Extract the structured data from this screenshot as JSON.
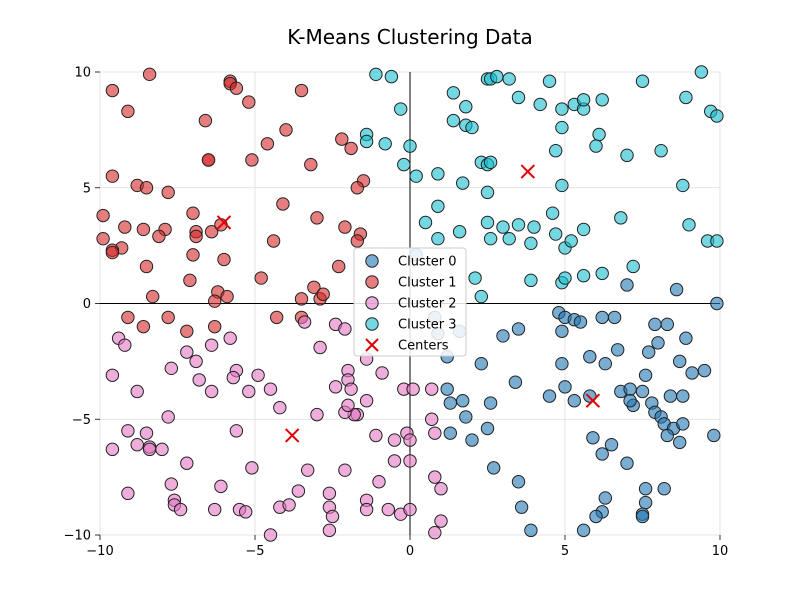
{
  "chart_data": {
    "type": "scatter",
    "title": "K-Means Clustering Data",
    "xlabel": "",
    "ylabel": "",
    "xlim": [
      -10,
      10
    ],
    "ylim": [
      -10,
      10
    ],
    "x_ticks": [
      -10,
      -5,
      0,
      5,
      10
    ],
    "y_ticks": [
      -10,
      -5,
      0,
      5,
      10
    ],
    "x_tick_labels": [
      "−10",
      "−5",
      "0",
      "5",
      "10"
    ],
    "y_tick_labels": [
      "−10",
      "−5",
      "0",
      "5",
      "10"
    ],
    "grid": true,
    "axes_through_origin": true,
    "legend_position": "center",
    "series": [
      {
        "name": "Cluster 0",
        "color": "#1f77b4",
        "points": [
          [
            0.2,
            2.1
          ],
          [
            0.8,
            -0.6
          ],
          [
            0.9,
            -1.3
          ],
          [
            1.2,
            -2.3
          ],
          [
            1.6,
            -1.2
          ],
          [
            3.0,
            -1.4
          ],
          [
            3.5,
            -1.1
          ],
          [
            4.8,
            -0.4
          ],
          [
            5.0,
            -0.6
          ],
          [
            5.3,
            -0.7
          ],
          [
            5.5,
            -0.8
          ],
          [
            6.2,
            -0.6
          ],
          [
            6.6,
            -0.6
          ],
          [
            4.9,
            -1.2
          ],
          [
            7.0,
            0.8
          ],
          [
            8.6,
            0.6
          ],
          [
            9.9,
            0.0
          ],
          [
            7.9,
            -0.9
          ],
          [
            8.3,
            -0.9
          ],
          [
            8.9,
            -1.5
          ],
          [
            8.0,
            -1.7
          ],
          [
            6.7,
            -2.0
          ],
          [
            5.8,
            -2.3
          ],
          [
            6.3,
            -2.6
          ],
          [
            7.7,
            -2.1
          ],
          [
            8.7,
            -2.5
          ],
          [
            9.1,
            -3.0
          ],
          [
            9.5,
            -2.9
          ],
          [
            7.6,
            -3.1
          ],
          [
            4.9,
            -2.6
          ],
          [
            2.3,
            -2.6
          ],
          [
            3.4,
            -3.4
          ],
          [
            5.0,
            -3.6
          ],
          [
            4.5,
            -4.0
          ],
          [
            5.3,
            -4.2
          ],
          [
            5.8,
            -4.0
          ],
          [
            6.8,
            -3.8
          ],
          [
            7.1,
            -3.7
          ],
          [
            7.5,
            -3.8
          ],
          [
            8.4,
            -4.0
          ],
          [
            8.8,
            -4.0
          ],
          [
            7.2,
            -4.4
          ],
          [
            7.1,
            -4.2
          ],
          [
            7.8,
            -4.3
          ],
          [
            7.9,
            -4.7
          ],
          [
            8.1,
            -4.9
          ],
          [
            8.2,
            -5.2
          ],
          [
            8.5,
            -5.4
          ],
          [
            8.3,
            -5.7
          ],
          [
            8.7,
            -6.0
          ],
          [
            8.8,
            -5.2
          ],
          [
            9.8,
            -5.7
          ],
          [
            1.2,
            -3.7
          ],
          [
            1.7,
            -4.2
          ],
          [
            1.3,
            -4.3
          ],
          [
            1.8,
            -4.9
          ],
          [
            1.3,
            -5.6
          ],
          [
            2.0,
            -5.9
          ],
          [
            2.5,
            -5.4
          ],
          [
            2.6,
            -4.3
          ],
          [
            2.7,
            -7.1
          ],
          [
            3.5,
            -7.7
          ],
          [
            3.6,
            -8.8
          ],
          [
            3.9,
            -9.8
          ],
          [
            5.9,
            -5.8
          ],
          [
            6.5,
            -6.1
          ],
          [
            6.2,
            -6.5
          ],
          [
            7.0,
            -6.9
          ],
          [
            7.6,
            -8.0
          ],
          [
            8.2,
            -8.0
          ],
          [
            7.6,
            -8.6
          ],
          [
            7.5,
            -9.1
          ],
          [
            7.5,
            -9.2
          ],
          [
            6.3,
            -8.4
          ],
          [
            6.2,
            -9.0
          ],
          [
            6.0,
            -9.2
          ],
          [
            5.6,
            -9.8
          ]
        ]
      },
      {
        "name": "Cluster 1",
        "color": "#d62728",
        "points": [
          [
            -8.4,
            9.9
          ],
          [
            -5.8,
            9.6
          ],
          [
            -5.8,
            9.5
          ],
          [
            -5.6,
            9.3
          ],
          [
            -3.5,
            9.2
          ],
          [
            -9.6,
            9.2
          ],
          [
            -9.1,
            8.3
          ],
          [
            -5.2,
            8.7
          ],
          [
            -6.6,
            7.9
          ],
          [
            -4.0,
            7.5
          ],
          [
            -4.6,
            6.9
          ],
          [
            -2.2,
            7.1
          ],
          [
            -1.9,
            6.7
          ],
          [
            -6.5,
            6.2
          ],
          [
            -6.5,
            6.2
          ],
          [
            -5.1,
            6.2
          ],
          [
            -3.2,
            6.0
          ],
          [
            -9.6,
            5.5
          ],
          [
            -1.5,
            5.3
          ],
          [
            -1.7,
            5.0
          ],
          [
            -8.8,
            5.1
          ],
          [
            -8.5,
            5.0
          ],
          [
            -7.8,
            4.8
          ],
          [
            -4.1,
            4.3
          ],
          [
            -9.9,
            3.8
          ],
          [
            -7.0,
            3.9
          ],
          [
            -3.0,
            3.7
          ],
          [
            -9.2,
            3.3
          ],
          [
            -8.6,
            3.2
          ],
          [
            -7.9,
            3.2
          ],
          [
            -6.9,
            3.1
          ],
          [
            -6.4,
            3.1
          ],
          [
            -6.1,
            3.4
          ],
          [
            -2.1,
            3.3
          ],
          [
            -1.6,
            3.0
          ],
          [
            -6.9,
            2.9
          ],
          [
            -8.1,
            2.9
          ],
          [
            -9.9,
            2.8
          ],
          [
            -4.4,
            2.7
          ],
          [
            -1.7,
            2.7
          ],
          [
            -9.3,
            2.4
          ],
          [
            -9.6,
            2.3
          ],
          [
            -9.6,
            2.2
          ],
          [
            -6.0,
            1.9
          ],
          [
            -7.0,
            2.1
          ],
          [
            -8.5,
            1.6
          ],
          [
            -2.3,
            1.6
          ],
          [
            -4.8,
            1.1
          ],
          [
            -7.1,
            1.0
          ],
          [
            -3.1,
            0.7
          ],
          [
            -6.2,
            0.5
          ],
          [
            -5.9,
            0.3
          ],
          [
            -6.3,
            0.1
          ],
          [
            -8.3,
            0.3
          ],
          [
            -3.5,
            0.2
          ],
          [
            -2.9,
            0.2
          ],
          [
            -2.8,
            0.4
          ],
          [
            -9.1,
            -0.6
          ],
          [
            -7.8,
            -0.6
          ],
          [
            -4.3,
            -0.6
          ],
          [
            -3.5,
            -0.6
          ],
          [
            -8.6,
            -1.0
          ],
          [
            -7.2,
            -1.2
          ],
          [
            -6.3,
            -1.0
          ]
        ]
      },
      {
        "name": "Cluster 2",
        "color": "#e377c2",
        "points": [
          [
            -3.4,
            -0.8
          ],
          [
            -2.4,
            -0.9
          ],
          [
            -2.1,
            -1.1
          ],
          [
            -5.8,
            -1.5
          ],
          [
            -6.4,
            -1.8
          ],
          [
            -9.4,
            -1.5
          ],
          [
            -9.2,
            -1.8
          ],
          [
            -7.2,
            -2.1
          ],
          [
            -2.9,
            -1.9
          ],
          [
            -6.9,
            -2.5
          ],
          [
            -2.0,
            -2.9
          ],
          [
            -7.7,
            -2.8
          ],
          [
            -5.6,
            -2.9
          ],
          [
            -1.4,
            -2.4
          ],
          [
            -9.6,
            -3.1
          ],
          [
            -5.7,
            -3.2
          ],
          [
            -4.9,
            -3.1
          ],
          [
            -6.8,
            -3.3
          ],
          [
            -2.0,
            -3.3
          ],
          [
            -1.9,
            -3.7
          ],
          [
            -0.9,
            -3.0
          ],
          [
            -8.8,
            -3.8
          ],
          [
            -6.4,
            -3.8
          ],
          [
            -5.2,
            -3.8
          ],
          [
            -4.5,
            -3.7
          ],
          [
            -2.4,
            -3.6
          ],
          [
            -1.7,
            -4.8
          ],
          [
            -1.8,
            -4.8
          ],
          [
            -2.1,
            -4.7
          ],
          [
            -2.0,
            -4.4
          ],
          [
            -1.4,
            -4.2
          ],
          [
            -4.2,
            -4.5
          ],
          [
            -3.0,
            -4.8
          ],
          [
            -7.8,
            -4.9
          ],
          [
            -0.2,
            -3.7
          ],
          [
            0.1,
            -3.7
          ],
          [
            0.7,
            -3.7
          ],
          [
            0.7,
            -5.0
          ],
          [
            -0.1,
            -5.6
          ],
          [
            0.8,
            -5.6
          ],
          [
            -1.1,
            -5.7
          ],
          [
            -0.5,
            -5.9
          ],
          [
            0.0,
            -5.9
          ],
          [
            -8.5,
            -5.6
          ],
          [
            -9.1,
            -5.5
          ],
          [
            -5.6,
            -5.5
          ],
          [
            -8.8,
            -6.1
          ],
          [
            -8.4,
            -6.2
          ],
          [
            -8.4,
            -6.3
          ],
          [
            -8.0,
            -6.3
          ],
          [
            -9.6,
            -6.3
          ],
          [
            -7.2,
            -6.9
          ],
          [
            -5.1,
            -7.1
          ],
          [
            -3.3,
            -7.2
          ],
          [
            -2.1,
            -7.2
          ],
          [
            -1.0,
            -7.7
          ],
          [
            -0.5,
            -6.8
          ],
          [
            0.0,
            -6.8
          ],
          [
            0.8,
            -7.5
          ],
          [
            1.0,
            -8.0
          ],
          [
            -7.7,
            -7.8
          ],
          [
            -9.1,
            -8.2
          ],
          [
            -7.6,
            -8.5
          ],
          [
            -7.6,
            -8.7
          ],
          [
            -7.4,
            -8.9
          ],
          [
            -6.1,
            -7.9
          ],
          [
            -6.3,
            -8.9
          ],
          [
            -5.5,
            -8.9
          ],
          [
            -5.3,
            -9.0
          ],
          [
            -4.2,
            -8.8
          ],
          [
            -3.9,
            -8.7
          ],
          [
            -3.6,
            -8.1
          ],
          [
            -2.6,
            -8.2
          ],
          [
            -2.6,
            -8.8
          ],
          [
            -2.5,
            -9.2
          ],
          [
            -1.4,
            -8.5
          ],
          [
            -1.4,
            -8.9
          ],
          [
            -0.7,
            -8.9
          ],
          [
            -0.3,
            -9.1
          ],
          [
            0.0,
            -8.9
          ],
          [
            1.0,
            -9.4
          ],
          [
            0.8,
            -9.9
          ],
          [
            -2.6,
            -9.8
          ],
          [
            -4.5,
            -10.0
          ]
        ]
      },
      {
        "name": "Cluster 3",
        "color": "#17becf",
        "points": [
          [
            -1.1,
            9.9
          ],
          [
            -0.6,
            9.8
          ],
          [
            2.5,
            9.7
          ],
          [
            2.6,
            9.7
          ],
          [
            2.8,
            9.8
          ],
          [
            3.2,
            9.7
          ],
          [
            4.5,
            9.6
          ],
          [
            7.5,
            9.6
          ],
          [
            9.4,
            10.0
          ],
          [
            1.4,
            9.1
          ],
          [
            3.5,
            8.9
          ],
          [
            4.2,
            8.6
          ],
          [
            4.9,
            8.4
          ],
          [
            5.3,
            8.6
          ],
          [
            5.6,
            8.4
          ],
          [
            5.6,
            8.8
          ],
          [
            6.2,
            8.8
          ],
          [
            8.9,
            8.9
          ],
          [
            9.7,
            8.3
          ],
          [
            9.9,
            8.1
          ],
          [
            -0.3,
            8.4
          ],
          [
            1.8,
            8.5
          ],
          [
            1.4,
            7.9
          ],
          [
            1.8,
            7.7
          ],
          [
            2.0,
            7.6
          ],
          [
            4.9,
            7.6
          ],
          [
            6.1,
            7.3
          ],
          [
            -1.4,
            7.3
          ],
          [
            -1.4,
            7.0
          ],
          [
            -0.8,
            6.9
          ],
          [
            0.0,
            6.8
          ],
          [
            4.7,
            6.6
          ],
          [
            6.0,
            6.8
          ],
          [
            7.0,
            6.4
          ],
          [
            8.1,
            6.6
          ],
          [
            -0.2,
            6.0
          ],
          [
            2.3,
            6.1
          ],
          [
            2.5,
            6.0
          ],
          [
            2.6,
            6.1
          ],
          [
            0.2,
            5.5
          ],
          [
            0.9,
            5.6
          ],
          [
            1.7,
            5.2
          ],
          [
            2.5,
            4.8
          ],
          [
            4.9,
            5.1
          ],
          [
            8.8,
            5.1
          ],
          [
            0.9,
            4.2
          ],
          [
            0.5,
            3.5
          ],
          [
            1.6,
            3.1
          ],
          [
            2.5,
            3.5
          ],
          [
            3.0,
            3.3
          ],
          [
            3.5,
            3.4
          ],
          [
            4.0,
            3.3
          ],
          [
            4.6,
            3.9
          ],
          [
            5.6,
            3.2
          ],
          [
            6.8,
            3.7
          ],
          [
            9.0,
            3.4
          ],
          [
            0.9,
            2.8
          ],
          [
            2.6,
            2.8
          ],
          [
            3.2,
            2.8
          ],
          [
            3.9,
            2.6
          ],
          [
            4.7,
            3.0
          ],
          [
            5.0,
            2.4
          ],
          [
            5.2,
            2.7
          ],
          [
            9.6,
            2.7
          ],
          [
            9.9,
            2.7
          ],
          [
            7.2,
            1.6
          ],
          [
            2.1,
            1.1
          ],
          [
            3.9,
            1.0
          ],
          [
            4.9,
            0.9
          ],
          [
            5.0,
            1.1
          ],
          [
            5.6,
            1.2
          ],
          [
            6.2,
            1.3
          ],
          [
            2.3,
            0.3
          ]
        ]
      },
      {
        "name": "Centers",
        "color": "#e00000",
        "marker": "x",
        "points": [
          [
            3.8,
            5.7
          ],
          [
            -6.0,
            3.5
          ],
          [
            -3.8,
            -5.7
          ],
          [
            5.9,
            -4.2
          ]
        ]
      }
    ]
  }
}
